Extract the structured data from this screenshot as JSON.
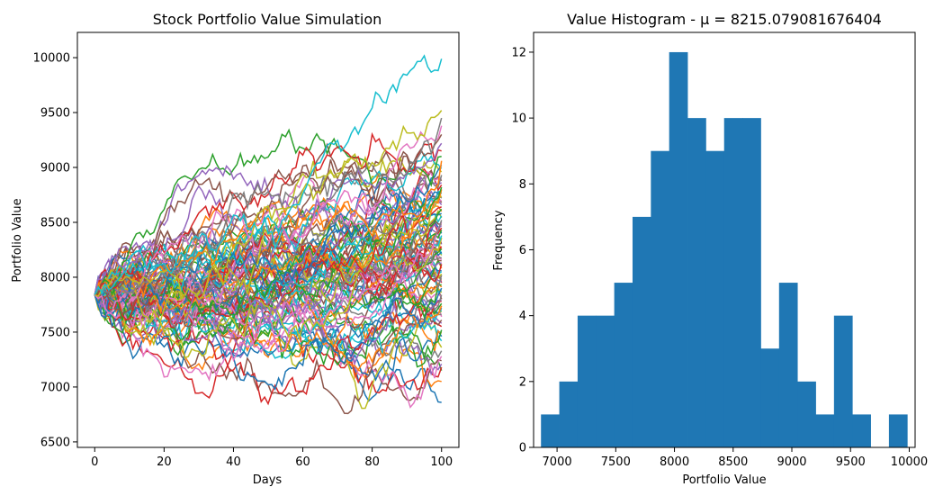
{
  "chart_data": [
    {
      "type": "line",
      "title": "Stock Portfolio Value Simulation",
      "xlabel": "Days",
      "ylabel": "Portfolio Value",
      "xlim": [
        -5,
        105
      ],
      "ylim": [
        6450,
        10230
      ],
      "xticks": [
        0,
        20,
        40,
        60,
        80,
        100
      ],
      "xtick_labels": [
        "0",
        "20",
        "40",
        "60",
        "80",
        "100"
      ],
      "yticks": [
        6500,
        7000,
        7500,
        8000,
        8500,
        9000,
        9500,
        10000
      ],
      "ytick_labels": [
        "6500",
        "7000",
        "7500",
        "8000",
        "8500",
        "9000",
        "9500",
        "10000"
      ],
      "grid": false,
      "legend": "none",
      "start_value": 7840,
      "n_days": 100,
      "n_series": 100,
      "colors": [
        "#1f77b4",
        "#ff7f0e",
        "#2ca02c",
        "#d62728",
        "#9467bd",
        "#8c564b",
        "#e377c2",
        "#7f7f7f",
        "#bcbd22",
        "#17becf"
      ],
      "final_values": [
        6860,
        7050,
        7150,
        7180,
        7210,
        7240,
        7280,
        7330,
        7360,
        7420,
        7460,
        7490,
        7520,
        7550,
        7580,
        7610,
        7640,
        7660,
        7690,
        7700,
        7720,
        7740,
        7760,
        7780,
        7790,
        7800,
        7820,
        7840,
        7860,
        7880,
        7900,
        7910,
        7930,
        7950,
        7960,
        7980,
        8000,
        8020,
        8030,
        8050,
        8060,
        8080,
        8100,
        8120,
        8130,
        8150,
        8160,
        8180,
        8200,
        8210,
        8230,
        8250,
        8260,
        8280,
        8300,
        8310,
        8330,
        8350,
        8360,
        8380,
        8400,
        8420,
        8430,
        8450,
        8470,
        8480,
        8500,
        8520,
        8540,
        8560,
        8580,
        8600,
        8620,
        8640,
        8660,
        8680,
        8700,
        8720,
        8740,
        8760,
        8780,
        8800,
        8820,
        8840,
        8860,
        8880,
        8900,
        8930,
        8960,
        8990,
        9020,
        9060,
        9100,
        9150,
        9220,
        9300,
        9380,
        9450,
        9520,
        9990
      ]
    },
    {
      "type": "bar",
      "title": "Value Histogram - μ = 8215.079081676404",
      "xlabel": "Portfolio Value",
      "ylabel": "Frequency",
      "xlim": [
        6800,
        10050
      ],
      "ylim": [
        0,
        12.6
      ],
      "xticks": [
        7000,
        7500,
        8000,
        8500,
        9000,
        9500,
        10000
      ],
      "xtick_labels": [
        "7000",
        "7500",
        "8000",
        "8500",
        "9000",
        "9500",
        "10000"
      ],
      "yticks": [
        0,
        2,
        4,
        6,
        8,
        10,
        12
      ],
      "ytick_labels": [
        "0",
        "2",
        "4",
        "6",
        "8",
        "10",
        "12"
      ],
      "bin_edges": [
        6863,
        7019,
        7175,
        7331,
        7487,
        7643,
        7799,
        7955,
        8111,
        8267,
        8423,
        8579,
        8735,
        8891,
        9047,
        9203,
        9359,
        9515,
        9671,
        9827,
        9983
      ],
      "values": [
        1,
        2,
        4,
        4,
        5,
        7,
        9,
        12,
        10,
        9,
        10,
        10,
        3,
        5,
        2,
        1,
        4,
        1,
        0,
        1
      ],
      "color": "#1f77b4",
      "grid": false,
      "legend": "none"
    }
  ]
}
